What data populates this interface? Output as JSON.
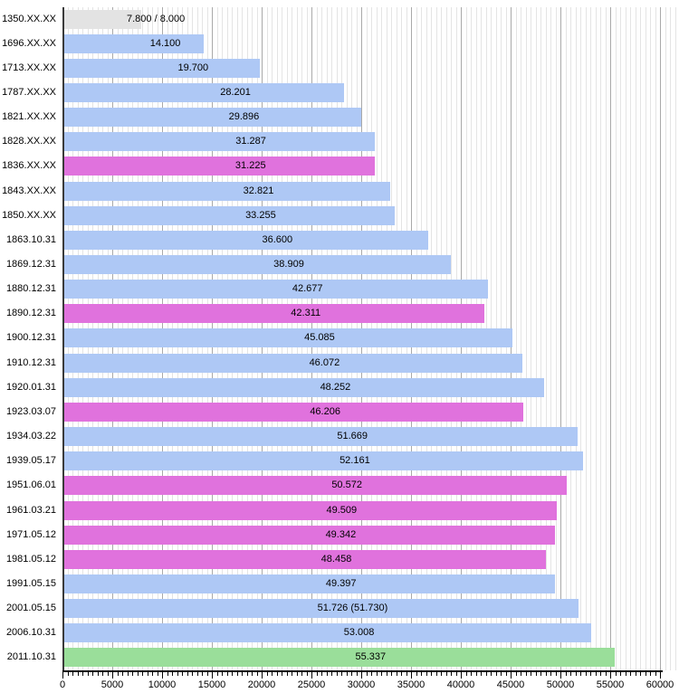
{
  "chart_data": {
    "type": "bar",
    "orientation": "horizontal",
    "title": "",
    "xlabel": "",
    "ylabel": "",
    "xlim": [
      0,
      60000
    ],
    "x_major_step": 5000,
    "x_minor_step": 500,
    "grid": true,
    "legend": false,
    "x_tick_labels": [
      "0",
      "5000",
      "10000",
      "15000",
      "20000",
      "25000",
      "30000",
      "35000",
      "40000",
      "45000",
      "50000",
      "55000",
      "60000"
    ],
    "categories": [
      "1350.XX.XX",
      "1696.XX.XX",
      "1713.XX.XX",
      "1787.XX.XX",
      "1821.XX.XX",
      "1828.XX.XX",
      "1836.XX.XX",
      "1843.XX.XX",
      "1850.XX.XX",
      "1863.10.31",
      "1869.12.31",
      "1880.12.31",
      "1890.12.31",
      "1900.12.31",
      "1910.12.31",
      "1920.01.31",
      "1923.03.07",
      "1934.03.22",
      "1939.05.17",
      "1951.06.01",
      "1961.03.21",
      "1971.05.12",
      "1981.05.12",
      "1991.05.15",
      "2001.05.15",
      "2006.10.31",
      "2011.10.31"
    ],
    "rows": [
      {
        "date": "1350.XX.XX",
        "value": 7800,
        "value_label": "7.800 / 8.000",
        "color_role": "gray"
      },
      {
        "date": "1696.XX.XX",
        "value": 14100,
        "value_label": "14.100",
        "color_role": "blue"
      },
      {
        "date": "1713.XX.XX",
        "value": 19700,
        "value_label": "19.700",
        "color_role": "blue"
      },
      {
        "date": "1787.XX.XX",
        "value": 28201,
        "value_label": "28.201",
        "color_role": "blue"
      },
      {
        "date": "1821.XX.XX",
        "value": 29896,
        "value_label": "29.896",
        "color_role": "blue"
      },
      {
        "date": "1828.XX.XX",
        "value": 31287,
        "value_label": "31.287",
        "color_role": "blue"
      },
      {
        "date": "1836.XX.XX",
        "value": 31225,
        "value_label": "31.225",
        "color_role": "magenta"
      },
      {
        "date": "1843.XX.XX",
        "value": 32821,
        "value_label": "32.821",
        "color_role": "blue"
      },
      {
        "date": "1850.XX.XX",
        "value": 33255,
        "value_label": "33.255",
        "color_role": "blue"
      },
      {
        "date": "1863.10.31",
        "value": 36600,
        "value_label": "36.600",
        "color_role": "blue"
      },
      {
        "date": "1869.12.31",
        "value": 38909,
        "value_label": "38.909",
        "color_role": "blue"
      },
      {
        "date": "1880.12.31",
        "value": 42677,
        "value_label": "42.677",
        "color_role": "blue"
      },
      {
        "date": "1890.12.31",
        "value": 42311,
        "value_label": "42.311",
        "color_role": "magenta"
      },
      {
        "date": "1900.12.31",
        "value": 45085,
        "value_label": "45.085",
        "color_role": "blue"
      },
      {
        "date": "1910.12.31",
        "value": 46072,
        "value_label": "46.072",
        "color_role": "blue"
      },
      {
        "date": "1920.01.31",
        "value": 48252,
        "value_label": "48.252",
        "color_role": "blue"
      },
      {
        "date": "1923.03.07",
        "value": 46206,
        "value_label": "46.206",
        "color_role": "magenta"
      },
      {
        "date": "1934.03.22",
        "value": 51669,
        "value_label": "51.669",
        "color_role": "blue"
      },
      {
        "date": "1939.05.17",
        "value": 52161,
        "value_label": "52.161",
        "color_role": "blue"
      },
      {
        "date": "1951.06.01",
        "value": 50572,
        "value_label": "50.572",
        "color_role": "magenta"
      },
      {
        "date": "1961.03.21",
        "value": 49509,
        "value_label": "49.509",
        "color_role": "magenta"
      },
      {
        "date": "1971.05.12",
        "value": 49342,
        "value_label": "49.342",
        "color_role": "magenta"
      },
      {
        "date": "1981.05.12",
        "value": 48458,
        "value_label": "48.458",
        "color_role": "magenta"
      },
      {
        "date": "1991.05.15",
        "value": 49397,
        "value_label": "49.397",
        "color_role": "blue"
      },
      {
        "date": "2001.05.15",
        "value": 51726,
        "value_label": "51.726 (51.730)",
        "color_role": "blue"
      },
      {
        "date": "2006.10.31",
        "value": 53008,
        "value_label": "53.008",
        "color_role": "blue"
      },
      {
        "date": "2011.10.31",
        "value": 55337,
        "value_label": "55.337",
        "color_role": "green"
      }
    ],
    "colors": {
      "blue": "#aec8f5",
      "magenta": "#e072dd",
      "green": "#9ade9a",
      "gray": "#e3e3e3",
      "grid_minor": "#e4e4e4",
      "grid_major": "#a9a9a9",
      "axis": "#000000"
    }
  }
}
